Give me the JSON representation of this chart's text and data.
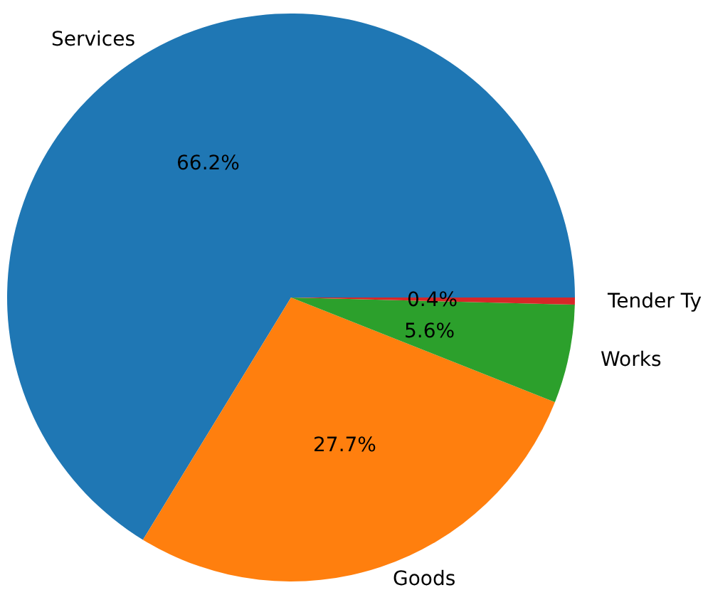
{
  "chart_data": {
    "type": "pie",
    "categories": [
      "Services",
      "Goods",
      "Works",
      "Tender Ty"
    ],
    "values": [
      66.2,
      27.7,
      5.6,
      0.4
    ],
    "colors": [
      "#1f77b4",
      "#ff7f0e",
      "#2ca02c",
      "#d62728"
    ],
    "value_labels": [
      "66.2%",
      "27.7%",
      "5.6%",
      "0.4%"
    ],
    "legend": false
  }
}
